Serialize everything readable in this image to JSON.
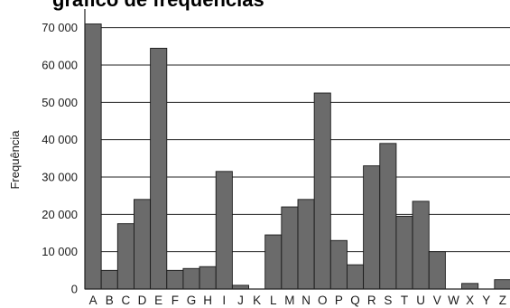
{
  "chart_data": {
    "type": "bar",
    "title": "",
    "title_visible_fragment": "gráfico de frequências",
    "ylabel": "Frequência",
    "xlabel": "",
    "categories": [
      "A",
      "B",
      "C",
      "D",
      "E",
      "F",
      "G",
      "H",
      "I",
      "J",
      "K",
      "L",
      "M",
      "N",
      "O",
      "P",
      "Q",
      "R",
      "S",
      "T",
      "U",
      "V",
      "W",
      "X",
      "Y",
      "Z"
    ],
    "values": [
      71000,
      5000,
      17500,
      24000,
      64500,
      5000,
      5500,
      6000,
      31500,
      1000,
      0,
      14500,
      22000,
      24000,
      52500,
      13000,
      6500,
      33000,
      39000,
      19500,
      23500,
      10000,
      0,
      1500,
      0,
      2500
    ],
    "ylim": [
      0,
      75000
    ],
    "yticks": [
      0,
      10000,
      20000,
      30000,
      40000,
      50000,
      60000,
      70000
    ],
    "ytick_labels": [
      "0",
      "10 000",
      "20 000",
      "30 000",
      "40 000",
      "50 000",
      "60 000",
      "70 000"
    ],
    "grid": true,
    "colors": {
      "bar": "#6b6b6b",
      "bar_edge": "#1a1a1a",
      "grid": "#222222",
      "axis": "#222222"
    }
  }
}
